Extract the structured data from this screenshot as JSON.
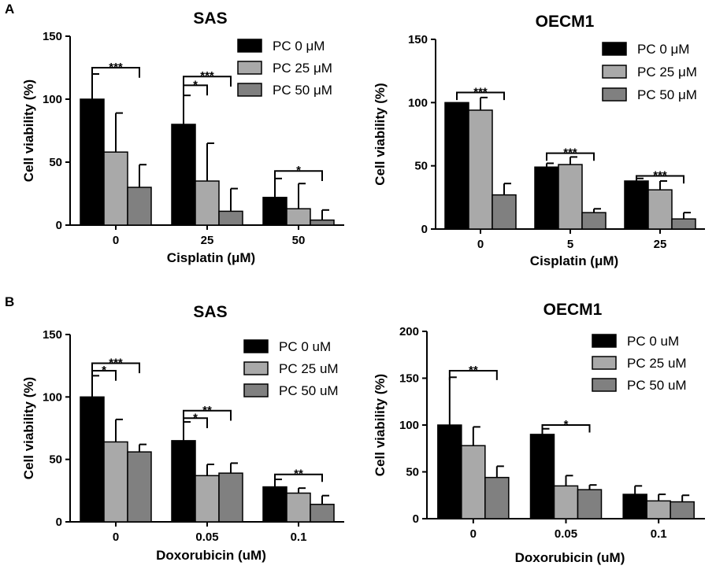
{
  "panel_labels": [
    "A",
    "B"
  ],
  "colors": {
    "pc0": "#000000",
    "pc25": "#a9a9a9",
    "pc50": "#808080",
    "stroke": "#000000"
  },
  "chart_data": [
    {
      "type": "bar",
      "title": "SAS",
      "xlabel": "Cisplatin (μM)",
      "ylabel": "Cell viability (%)",
      "ylim": [
        0,
        150
      ],
      "yticks": [
        0,
        50,
        100,
        150
      ],
      "categories": [
        "0",
        "25",
        "50"
      ],
      "legend": [
        "PC 0 μM",
        "PC 25 μM",
        "PC 50 μM"
      ],
      "series": [
        {
          "name": "PC 0 μM",
          "values": [
            100,
            80,
            22
          ],
          "errors": [
            20,
            23,
            15
          ]
        },
        {
          "name": "PC 25 μM",
          "values": [
            58,
            35,
            13
          ],
          "errors": [
            31,
            30,
            20
          ]
        },
        {
          "name": "PC 50 μM",
          "values": [
            30,
            11,
            4
          ],
          "errors": [
            18,
            18,
            8
          ]
        }
      ],
      "annotations": [
        {
          "label": "***",
          "group": 0,
          "from": 0,
          "to": 2,
          "level": 125,
          "drop": 8
        },
        {
          "label": "***",
          "group": 1,
          "from": 0,
          "to": 2,
          "level": 118,
          "drop": 8
        },
        {
          "label": "*",
          "group": 1,
          "from": 0,
          "to": 1,
          "level": 111,
          "drop": 8
        },
        {
          "label": "*",
          "group": 2,
          "from": 0,
          "to": 2,
          "level": 43,
          "drop": 8
        }
      ]
    },
    {
      "type": "bar",
      "title": "OECM1",
      "xlabel": "Cisplatin (μM)",
      "ylabel": "Cell viability (%)",
      "ylim": [
        0,
        150
      ],
      "yticks": [
        0,
        50,
        100,
        150
      ],
      "categories": [
        "0",
        "5",
        "25"
      ],
      "legend": [
        "PC 0 μM",
        "PC 25 μM",
        "PC 50 μM"
      ],
      "series": [
        {
          "name": "PC 0 μM",
          "values": [
            100,
            49,
            38
          ],
          "errors": [
            0,
            3,
            2
          ]
        },
        {
          "name": "PC 25 μM",
          "values": [
            94,
            51,
            31
          ],
          "errors": [
            10,
            6,
            7
          ]
        },
        {
          "name": "PC 50 μM",
          "values": [
            27,
            13,
            8
          ],
          "errors": [
            9,
            3,
            5
          ]
        }
      ],
      "annotations": [
        {
          "label": "***",
          "group": 0,
          "from": 0,
          "to": 2,
          "level": 108,
          "drop": 6
        },
        {
          "label": "***",
          "group": 1,
          "from": 0,
          "to": 2,
          "level": 60,
          "drop": 6
        },
        {
          "label": "***",
          "group": 2,
          "from": 0,
          "to": 2,
          "level": 42,
          "drop": 6
        }
      ]
    },
    {
      "type": "bar",
      "title": "SAS",
      "xlabel": "Doxorubicin (uM)",
      "ylabel": "Cell viability (%)",
      "ylim": [
        0,
        150
      ],
      "yticks": [
        0,
        50,
        100,
        150
      ],
      "categories": [
        "0",
        "0.05",
        "0.1"
      ],
      "legend": [
        "PC 0 uM",
        "PC 25 uM",
        "PC 50 uM"
      ],
      "series": [
        {
          "name": "PC 0 uM",
          "values": [
            100,
            65,
            28
          ],
          "errors": [
            17,
            15,
            6
          ]
        },
        {
          "name": "PC 25 uM",
          "values": [
            64,
            37,
            23
          ],
          "errors": [
            18,
            9,
            4
          ]
        },
        {
          "name": "PC 50 uM",
          "values": [
            56,
            39,
            14
          ],
          "errors": [
            6,
            8,
            7
          ]
        }
      ],
      "annotations": [
        {
          "label": "***",
          "group": 0,
          "from": 0,
          "to": 2,
          "level": 127,
          "drop": 8
        },
        {
          "label": "*",
          "group": 0,
          "from": 0,
          "to": 1,
          "level": 121,
          "drop": 8
        },
        {
          "label": "**",
          "group": 1,
          "from": 0,
          "to": 2,
          "level": 89,
          "drop": 8
        },
        {
          "label": "*",
          "group": 1,
          "from": 0,
          "to": 1,
          "level": 83,
          "drop": 8
        },
        {
          "label": "**",
          "group": 2,
          "from": 0,
          "to": 2,
          "level": 38,
          "drop": 6
        }
      ]
    },
    {
      "type": "bar",
      "title": "OECM1",
      "xlabel": "Doxorubicin (uM)",
      "ylabel": "Cell viability (%)",
      "ylim": [
        0,
        200
      ],
      "yticks": [
        0,
        50,
        100,
        150,
        200
      ],
      "categories": [
        "0",
        "0.05",
        "0.1"
      ],
      "legend": [
        "PC 0 uM",
        "PC 25 uM",
        "PC 50 uM"
      ],
      "series": [
        {
          "name": "PC 0 uM",
          "values": [
            100,
            90,
            26
          ],
          "errors": [
            51,
            6,
            9
          ]
        },
        {
          "name": "PC 25 uM",
          "values": [
            78,
            35,
            19
          ],
          "errors": [
            20,
            11,
            7
          ]
        },
        {
          "name": "PC 50 uM",
          "values": [
            44,
            31,
            18
          ],
          "errors": [
            12,
            5,
            7
          ]
        }
      ],
      "annotations": [
        {
          "label": "**",
          "group": 0,
          "from": 0,
          "to": 2,
          "level": 158,
          "drop": 10
        },
        {
          "label": "*",
          "group": 1,
          "from": 0,
          "to": 2,
          "level": 100,
          "drop": 8
        }
      ]
    }
  ]
}
